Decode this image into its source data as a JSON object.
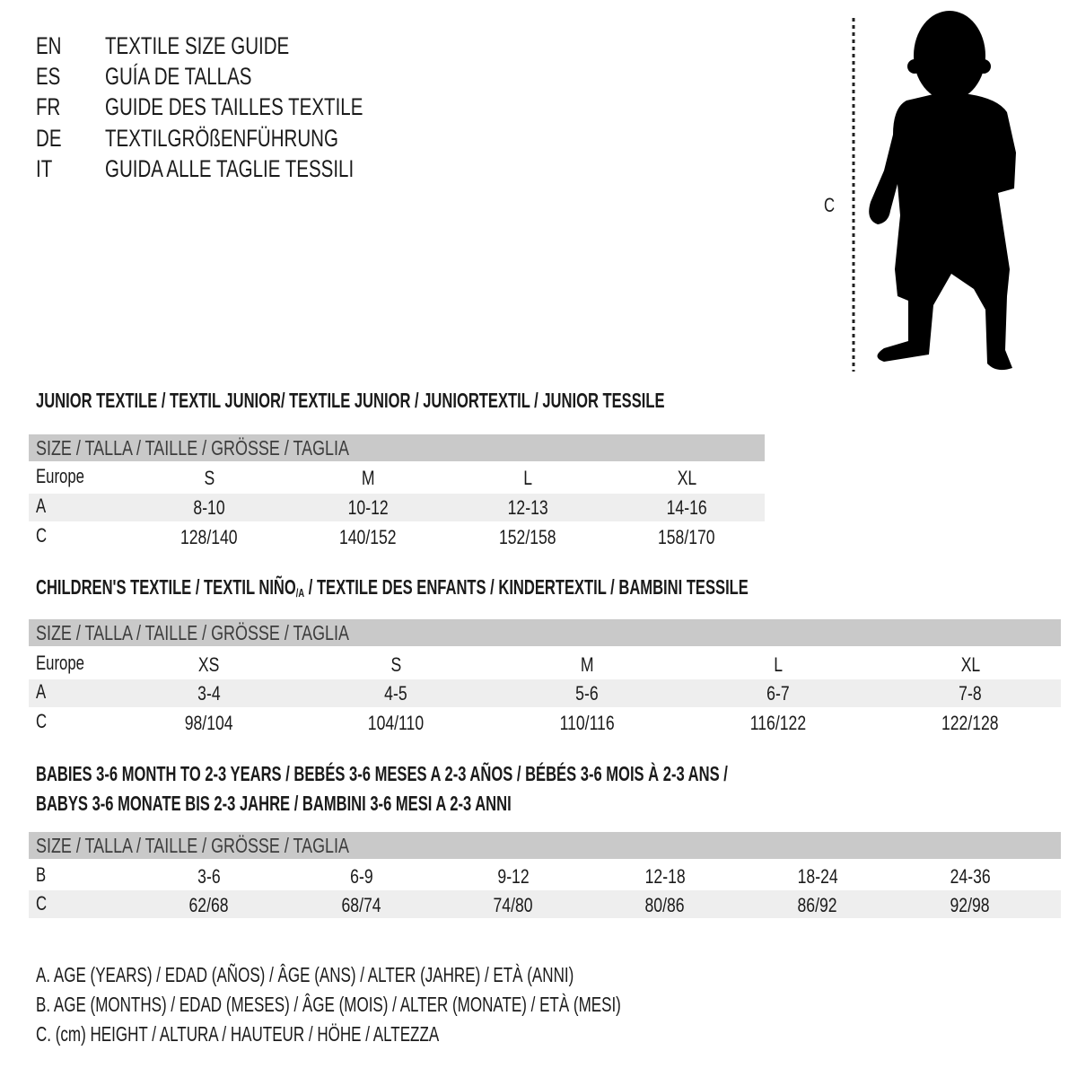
{
  "languages": [
    {
      "code": "EN",
      "title": "TEXTILE SIZE GUIDE"
    },
    {
      "code": "ES",
      "title": "GUÍA DE TALLAS"
    },
    {
      "code": "FR",
      "title": "GUIDE DES TAILLES TEXTILE"
    },
    {
      "code": "DE",
      "title": "TEXTILGRÖßENFÜHRUNG"
    },
    {
      "code": "IT",
      "title": "GUIDA ALLE TAGLIE TESSILI"
    }
  ],
  "figure": {
    "measure_label": "C",
    "icon": "child-silhouette"
  },
  "colors": {
    "header_bar": "#c9c9c9",
    "row_shade": "#eeeeee"
  },
  "junior": {
    "title": "JUNIOR TEXTILE / TEXTIL JUNIOR/ TEXTILE JUNIOR / JUNIORTEXTIL / JUNIOR TESSILE",
    "header": "SIZE / TALLA / TAILLE / GRÖSSE / TAGLIA",
    "rows": [
      {
        "label": "Europe",
        "values": [
          "S",
          "M",
          "L",
          "XL"
        ]
      },
      {
        "label": "A",
        "values": [
          "8-10",
          "10-12",
          "12-13",
          "14-16"
        ]
      },
      {
        "label": "C",
        "values": [
          "128/140",
          "140/152",
          "152/158",
          "158/170"
        ]
      }
    ]
  },
  "children": {
    "title_pre": "CHILDREN'S TEXTILE / TEXTIL NIÑO",
    "title_sub": "/A",
    "title_post": " / TEXTILE DES ENFANTS / KINDERTEXTIL / BAMBINI TESSILE",
    "header": "SIZE / TALLA / TAILLE / GRÖSSE / TAGLIA",
    "rows": [
      {
        "label": "Europe",
        "values": [
          "XS",
          "S",
          "M",
          "L",
          "XL"
        ]
      },
      {
        "label": "A",
        "values": [
          "3-4",
          "4-5",
          "5-6",
          "6-7",
          "7-8"
        ]
      },
      {
        "label": "C",
        "values": [
          "98/104",
          "104/110",
          "110/116",
          "116/122",
          "122/128"
        ]
      }
    ]
  },
  "babies": {
    "title_line1": "BABIES 3-6 MONTH TO 2-3 YEARS / BEBÉS 3-6 MESES A 2-3 AÑOS / BÉBÉS 3-6 MOIS À 2-3 ANS /",
    "title_line2": "BABYS 3-6 MONATE BIS 2-3 JAHRE / BAMBINI 3-6 MESI A 2-3 ANNI",
    "header": "SIZE / TALLA / TAILLE / GRÖSSE / TAGLIA",
    "rows": [
      {
        "label": "B",
        "values": [
          "3-6",
          "6-9",
          "9-12",
          "12-18",
          "18-24",
          "24-36"
        ]
      },
      {
        "label": "C",
        "values": [
          "62/68",
          "68/74",
          "74/80",
          "80/86",
          "86/92",
          "92/98"
        ]
      }
    ]
  },
  "legend": [
    "A. AGE (YEARS) / EDAD (AÑOS) / ÂGE (ANS) / ALTER (JAHRE) / ETÀ (ANNI)",
    "B. AGE (MONTHS) / EDAD (MESES) / ÂGE (MOIS) / ALTER (MONATE) / ETÀ (MESI)",
    "C. (cm) HEIGHT / ALTURA / HAUTEUR / HÖHE / ALTEZZA"
  ]
}
